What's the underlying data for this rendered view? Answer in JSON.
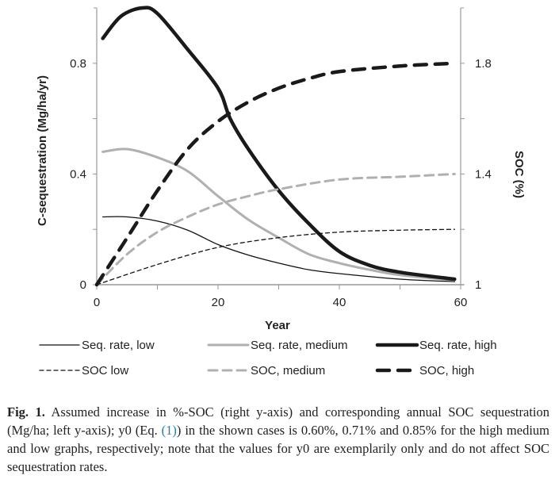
{
  "chart_data": {
    "type": "line",
    "title": "",
    "xlabel": "Year",
    "ylabel_left": "C-sequestration (Mg/ha/yr)",
    "ylabel_right": "SOC (%)",
    "xlim": [
      0,
      60
    ],
    "ylim_left": [
      0,
      1
    ],
    "ylim_right": [
      1,
      2
    ],
    "x_ticks": [
      0,
      20,
      40,
      60
    ],
    "x_minor_ticks": [
      10,
      30,
      50
    ],
    "y_left_ticks": [
      "0",
      "0.4",
      "0.8"
    ],
    "y_left_tick_values": [
      0,
      0.4,
      0.8
    ],
    "y_left_minor_ticks": [
      0.2,
      0.6
    ],
    "y_right_ticks": [
      "1",
      "1.4",
      "1.8"
    ],
    "y_right_tick_values": [
      1,
      1.4,
      1.8
    ],
    "y_right_minor_ticks": [
      1.2,
      1.6
    ],
    "grid": false,
    "legend_placement": "bottom",
    "series": [
      {
        "name": "Seq. rate, low",
        "axis": "left",
        "style": "solid-thin",
        "color": "#111111",
        "x": [
          1,
          5,
          10,
          15,
          20,
          25,
          30,
          35,
          40,
          50,
          59
        ],
        "y": [
          0.245,
          0.245,
          0.23,
          0.197,
          0.145,
          0.107,
          0.078,
          0.054,
          0.04,
          0.02,
          0.011
        ]
      },
      {
        "name": "Seq. rate, medium",
        "axis": "left",
        "style": "solid-medium",
        "color": "#b0b0b0",
        "x": [
          1,
          5,
          10,
          15,
          20,
          25,
          30,
          35,
          40,
          45,
          50,
          59
        ],
        "y": [
          0.48,
          0.49,
          0.46,
          0.41,
          0.32,
          0.235,
          0.17,
          0.11,
          0.078,
          0.054,
          0.035,
          0.016
        ]
      },
      {
        "name": "Seq. rate, high",
        "axis": "left",
        "style": "solid-thick",
        "color": "#1a1a1a",
        "x": [
          1,
          4,
          7.5,
          10,
          15,
          20,
          22,
          25,
          30,
          35,
          40,
          45,
          50,
          59
        ],
        "y": [
          0.89,
          0.97,
          1.0,
          0.98,
          0.85,
          0.71,
          0.6,
          0.49,
          0.34,
          0.22,
          0.12,
          0.07,
          0.045,
          0.02
        ]
      },
      {
        "name": "SOC low",
        "axis": "right",
        "style": "dashed-thin",
        "color": "#111111",
        "x": [
          0,
          10,
          20,
          30,
          40,
          50,
          59
        ],
        "y": [
          1.0,
          1.073,
          1.135,
          1.17,
          1.19,
          1.197,
          1.2
        ]
      },
      {
        "name": "SOC, medium",
        "axis": "right",
        "style": "dashed-medium",
        "color": "#b0b0b0",
        "x": [
          0,
          5,
          10,
          15,
          20,
          25,
          30,
          40,
          50,
          59
        ],
        "y": [
          1.0,
          1.11,
          1.19,
          1.245,
          1.29,
          1.32,
          1.345,
          1.38,
          1.39,
          1.4
        ]
      },
      {
        "name": "SOC, high",
        "axis": "right",
        "style": "dashed-thick",
        "color": "#1a1a1a",
        "x": [
          0,
          5,
          10,
          15,
          20,
          25,
          30,
          35,
          40,
          50,
          59
        ],
        "y": [
          1.0,
          1.169,
          1.34,
          1.49,
          1.59,
          1.66,
          1.71,
          1.745,
          1.77,
          1.79,
          1.8
        ]
      }
    ]
  },
  "caption": {
    "label": "Fig. 1.",
    "text_before_ref": " Assumed increase in %-SOC (right y-axis) and corresponding annual SOC sequestration (Mg/ha; left y-axis); y0 (Eq. ",
    "ref": "(1)",
    "text_after_ref": ") in the shown cases is 0.60%, 0.71% and 0.85% for the high medium and low graphs, respectively; note that the values for y0 are exemplarily only and do not affect SOC sequestration rates."
  }
}
